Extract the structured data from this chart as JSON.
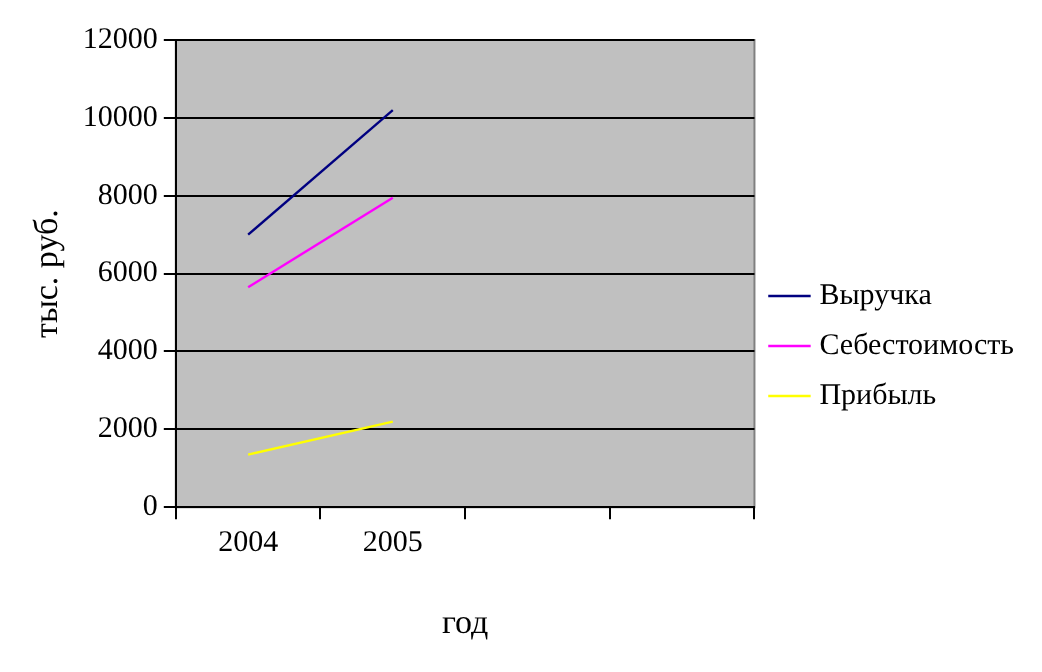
{
  "chart_data": {
    "type": "line",
    "xlabel": "год",
    "ylabel": "тыс. руб.",
    "categories": [
      "2004",
      "2005",
      null,
      null
    ],
    "series": [
      {
        "name": "Выручка",
        "color": "#000080",
        "values": [
          7000,
          10200,
          null,
          null
        ]
      },
      {
        "name": "Себестоимость",
        "color": "#ff00ff",
        "values": [
          5650,
          7950,
          null,
          null
        ]
      },
      {
        "name": "Прибыль",
        "color": "#ffff00",
        "values": [
          1350,
          2200,
          null,
          null
        ]
      }
    ],
    "ylim": [
      0,
      12000
    ],
    "yticks": [
      0,
      2000,
      4000,
      6000,
      8000,
      10000,
      12000
    ],
    "grid": "y",
    "legend": "right",
    "marker": "none"
  }
}
